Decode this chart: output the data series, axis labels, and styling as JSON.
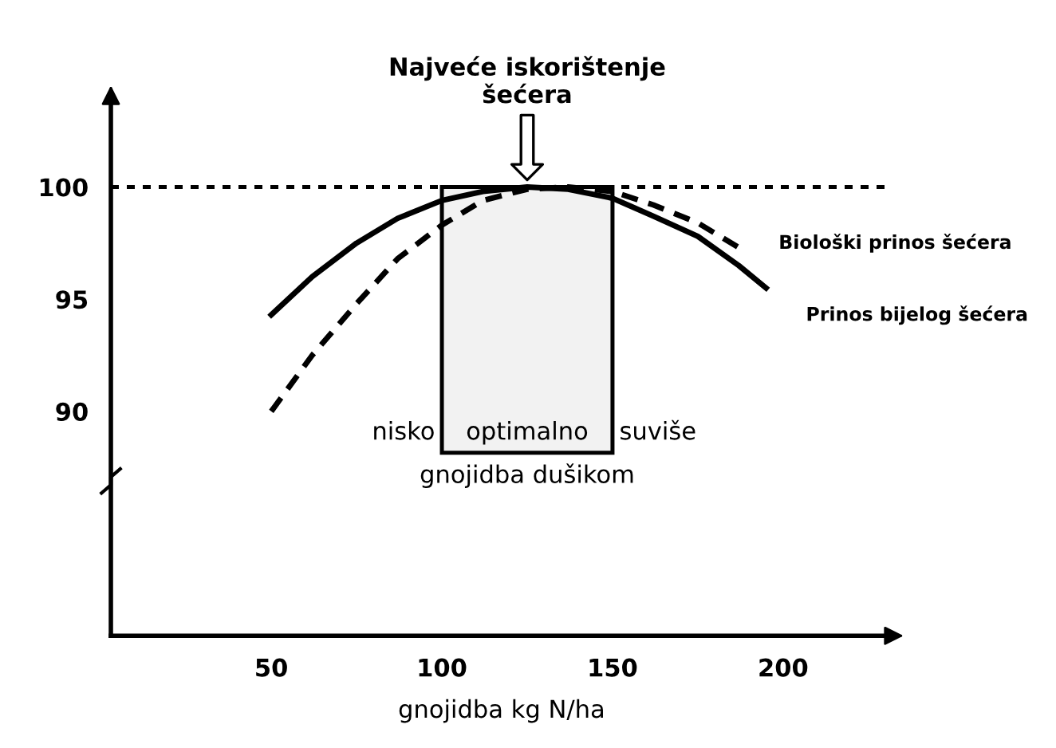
{
  "chart_data": {
    "type": "line",
    "xlabel": "gnojidba kg N/ha",
    "xlim": [
      3,
      232
    ],
    "xticks": [
      50,
      100,
      150,
      200
    ],
    "ylim": [
      80,
      104
    ],
    "yticks": [
      90,
      95,
      100
    ],
    "grid": false,
    "series": [
      {
        "name": "Prinos bijelog šećera",
        "color": "#000000",
        "line_style": "solid",
        "x": [
          50,
          62,
          75,
          87,
          100,
          112,
          125,
          137,
          150,
          162,
          175,
          187,
          195
        ],
        "values": [
          94.3,
          96.0,
          97.5,
          98.6,
          99.4,
          99.8,
          100,
          99.9,
          99.5,
          98.7,
          97.8,
          96.5,
          95.5
        ]
      },
      {
        "name": "Biološki prinos šećera",
        "color": "#000000",
        "line_style": "dashed",
        "x": [
          50,
          62,
          75,
          87,
          100,
          112,
          125,
          137,
          150,
          162,
          175,
          187
        ],
        "values": [
          90,
          92.5,
          94.8,
          96.8,
          98.3,
          99.4,
          99.9,
          100,
          99.8,
          99.2,
          98.4,
          97.3
        ]
      }
    ],
    "ref_lines": [
      {
        "axis": "y",
        "value": 100,
        "line_style": "dotted",
        "color": "#000000"
      }
    ],
    "bands": [
      {
        "axis": "x",
        "from": 100,
        "to": 150,
        "label": "optimalno",
        "color": "#f2f2f2"
      }
    ],
    "annotations": [
      "Najveće iskorištenje\nšećera",
      "nisko",
      "suviše",
      "gnojidba dušikom"
    ]
  }
}
